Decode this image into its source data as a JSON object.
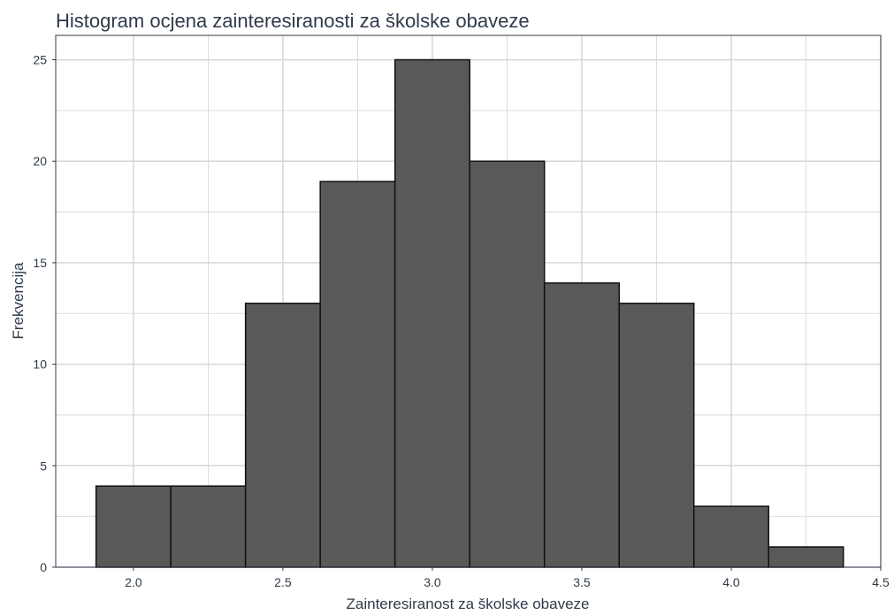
{
  "chart_data": {
    "type": "bar",
    "title": "Histogram ocjena zainteresiranosti za školske obaveze",
    "xlabel": "Zainteresiranost za školske obaveze",
    "ylabel": "Frekvencija",
    "xlim": [
      1.74,
      4.5
    ],
    "ylim": [
      0,
      26.2
    ],
    "x_ticks": [
      2.0,
      2.5,
      3.0,
      3.5,
      4.0,
      4.5
    ],
    "x_tick_labels": [
      "2.0",
      "2.5",
      "3.0",
      "3.5",
      "4.0",
      "4.5"
    ],
    "y_ticks": [
      0,
      5,
      10,
      15,
      20,
      25
    ],
    "y_tick_labels": [
      "0",
      "5",
      "10",
      "15",
      "20",
      "25"
    ],
    "grid": true,
    "bins": [
      {
        "start": 1.875,
        "end": 2.125,
        "count": 4
      },
      {
        "start": 2.125,
        "end": 2.375,
        "count": 4
      },
      {
        "start": 2.375,
        "end": 2.625,
        "count": 13
      },
      {
        "start": 2.625,
        "end": 2.875,
        "count": 19
      },
      {
        "start": 2.875,
        "end": 3.125,
        "count": 25
      },
      {
        "start": 3.125,
        "end": 3.375,
        "count": 20
      },
      {
        "start": 3.375,
        "end": 3.625,
        "count": 14
      },
      {
        "start": 3.625,
        "end": 3.875,
        "count": 13
      },
      {
        "start": 3.875,
        "end": 4.125,
        "count": 3
      },
      {
        "start": 4.125,
        "end": 4.375,
        "count": 1
      }
    ],
    "bar_fill": "#595959",
    "bar_stroke": "#111111",
    "grid_color": "#d3d3d3",
    "axis_color": "#2f3b4a",
    "text_color": "#2f3b4a"
  }
}
